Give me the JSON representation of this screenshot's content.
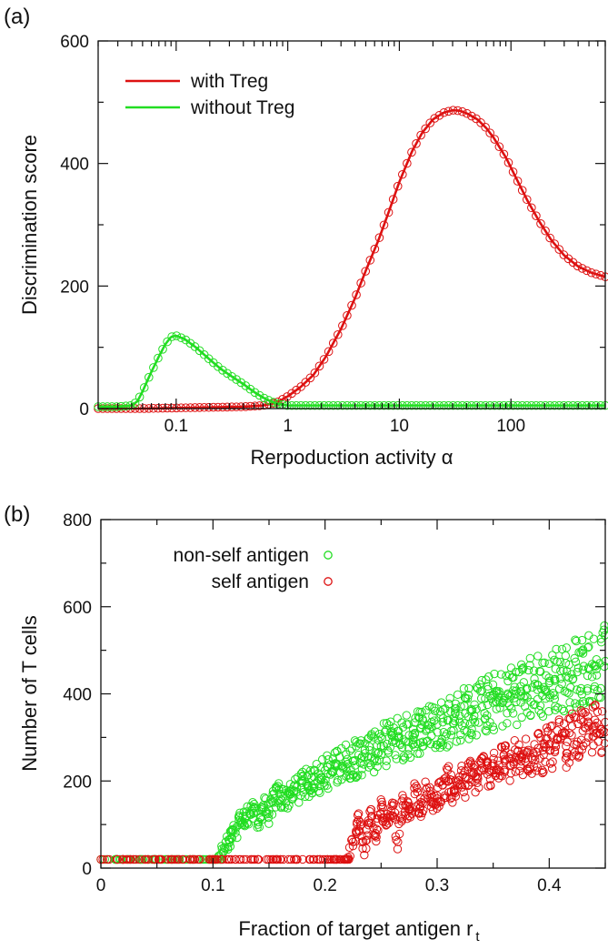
{
  "chart_data": [
    {
      "panel_label": "(a)",
      "type": "line",
      "xscale": "log",
      "xlim": [
        0.02,
        700
      ],
      "ylim": [
        0,
        600
      ],
      "xticks": [
        0.1,
        1,
        10,
        100
      ],
      "xtick_labels": [
        "0.1",
        "1",
        "10",
        "100"
      ],
      "yticks": [
        0,
        200,
        400,
        600
      ],
      "ytick_labels": [
        "0",
        "200",
        "400",
        "600"
      ],
      "xlabel": "Rerpoduction activity α",
      "ylabel": "Discrimination score",
      "legend_position": "top-left",
      "series": [
        {
          "name": "with Treg",
          "color": "#dd1111",
          "marker": "open-circle",
          "x": [
            0.02,
            0.05,
            0.1,
            0.2,
            0.4,
            0.6,
            0.8,
            1.0,
            1.3,
            1.7,
            2.2,
            3,
            4,
            5,
            6.5,
            8,
            10,
            13,
            16,
            20,
            25,
            30,
            35,
            40,
            50,
            60,
            70,
            90,
            110,
            140,
            180,
            230,
            300,
            400,
            520,
            700
          ],
          "y": [
            0,
            0,
            1,
            2,
            3,
            5,
            10,
            20,
            35,
            55,
            85,
            130,
            180,
            225,
            275,
            320,
            370,
            420,
            450,
            472,
            483,
            487,
            486,
            482,
            472,
            458,
            442,
            410,
            378,
            340,
            305,
            275,
            250,
            232,
            222,
            215
          ]
        },
        {
          "name": "without Treg",
          "color": "#22dd22",
          "marker": "open-circle",
          "x": [
            0.02,
            0.03,
            0.04,
            0.045,
            0.05,
            0.055,
            0.06,
            0.07,
            0.08,
            0.09,
            0.1,
            0.12,
            0.15,
            0.2,
            0.25,
            0.3,
            0.4,
            0.5,
            0.6,
            0.7,
            0.8,
            1.0,
            2,
            10,
            100,
            700
          ],
          "y": [
            3,
            3,
            5,
            12,
            28,
            45,
            60,
            85,
            105,
            117,
            119,
            113,
            100,
            80,
            65,
            55,
            40,
            27,
            18,
            12,
            8,
            5,
            5,
            5,
            5,
            5
          ]
        }
      ]
    },
    {
      "panel_label": "(b)",
      "type": "scatter",
      "xlim": [
        0,
        0.45
      ],
      "ylim": [
        0,
        800
      ],
      "xticks": [
        0,
        0.1,
        0.2,
        0.3,
        0.4
      ],
      "xtick_labels": [
        "0",
        "0.1",
        "0.2",
        "0.3",
        "0.4"
      ],
      "yticks": [
        0,
        200,
        400,
        600,
        800
      ],
      "ytick_labels": [
        "0",
        "200",
        "400",
        "600",
        "800"
      ],
      "xlabel": "Fraction of target antigen r",
      "xlabel_subscript": "t",
      "ylabel": "Number of T cells",
      "legend_position": "top-left",
      "series": [
        {
          "name": "non-self antigen",
          "color": "#22dd22",
          "marker": "open-circle",
          "x": [
            0.0,
            0.02,
            0.04,
            0.06,
            0.08,
            0.1,
            0.105,
            0.11,
            0.115,
            0.12,
            0.125,
            0.13,
            0.135,
            0.14,
            0.145,
            0.15,
            0.155,
            0.16,
            0.165,
            0.17,
            0.175,
            0.18,
            0.185,
            0.19,
            0.195,
            0.2,
            0.205,
            0.21,
            0.215,
            0.22,
            0.225,
            0.23,
            0.235,
            0.24,
            0.245,
            0.25,
            0.255,
            0.26,
            0.265,
            0.27,
            0.275,
            0.28,
            0.285,
            0.29,
            0.295,
            0.3,
            0.305,
            0.31,
            0.315,
            0.32,
            0.325,
            0.33,
            0.335,
            0.34,
            0.345,
            0.35,
            0.355,
            0.36,
            0.365,
            0.37,
            0.375,
            0.38,
            0.385,
            0.39,
            0.395,
            0.4,
            0.405,
            0.41,
            0.415,
            0.42,
            0.425,
            0.43,
            0.435,
            0.44,
            0.445,
            0.45
          ],
          "y": [
            20,
            20,
            20,
            20,
            20,
            20,
            25,
            40,
            60,
            90,
            105,
            120,
            135,
            100,
            145,
            125,
            160,
            170,
            150,
            180,
            175,
            200,
            190,
            210,
            205,
            225,
            215,
            240,
            235,
            250,
            245,
            260,
            255,
            270,
            265,
            280,
            285,
            290,
            300,
            295,
            305,
            310,
            320,
            315,
            325,
            330,
            335,
            340,
            345,
            350,
            355,
            360,
            365,
            370,
            375,
            380,
            385,
            390,
            395,
            400,
            405,
            410,
            415,
            420,
            415,
            425,
            430,
            435,
            440,
            445,
            450,
            455,
            460,
            465,
            470,
            475
          ]
        },
        {
          "name": "self antigen",
          "color": "#dd1111",
          "marker": "open-circle",
          "x": [
            0.0,
            0.02,
            0.04,
            0.06,
            0.08,
            0.1,
            0.12,
            0.14,
            0.16,
            0.18,
            0.2,
            0.21,
            0.22,
            0.225,
            0.23,
            0.235,
            0.24,
            0.245,
            0.25,
            0.255,
            0.26,
            0.265,
            0.27,
            0.275,
            0.28,
            0.285,
            0.29,
            0.295,
            0.3,
            0.305,
            0.31,
            0.315,
            0.32,
            0.325,
            0.33,
            0.335,
            0.34,
            0.345,
            0.35,
            0.355,
            0.36,
            0.365,
            0.37,
            0.375,
            0.38,
            0.385,
            0.39,
            0.395,
            0.4,
            0.405,
            0.41,
            0.415,
            0.42,
            0.425,
            0.43,
            0.435,
            0.44,
            0.445,
            0.45
          ],
          "y": [
            20,
            20,
            20,
            20,
            20,
            20,
            20,
            20,
            20,
            20,
            20,
            20,
            20,
            60,
            110,
            30,
            130,
            80,
            140,
            100,
            150,
            60,
            160,
            120,
            170,
            140,
            180,
            150,
            160,
            190,
            200,
            175,
            210,
            190,
            220,
            205,
            230,
            215,
            240,
            225,
            250,
            235,
            255,
            245,
            265,
            250,
            275,
            260,
            285,
            270,
            295,
            280,
            305,
            290,
            315,
            300,
            325,
            310,
            335
          ]
        }
      ]
    }
  ]
}
